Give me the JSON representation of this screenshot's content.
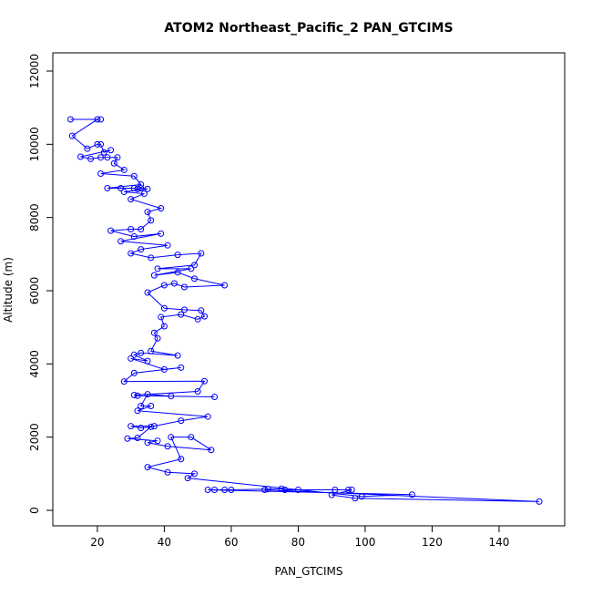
{
  "chart_data": {
    "type": "line",
    "title": "ATOM2 Northeast_Pacific_2 PAN_GTCIMS",
    "x_label": "PAN_GTCIMS",
    "y_label": "Altitude (m)",
    "color": "#0000ff",
    "markers": true,
    "grid": false,
    "xlim": [
      6.7,
      159.6
    ],
    "ylim": [
      -423,
      12498
    ],
    "xticks": [
      20,
      40,
      60,
      80,
      100,
      120,
      140
    ],
    "yticks": [
      0,
      2000,
      4000,
      6000,
      8000,
      10000,
      12000
    ],
    "x": [
      12,
      21,
      20,
      12.5,
      17,
      20,
      21,
      22,
      24,
      15,
      18,
      21,
      23,
      26,
      25,
      28,
      21,
      31,
      33,
      23,
      27,
      31,
      32,
      33,
      35,
      28,
      34,
      30,
      39,
      35,
      36,
      33,
      30,
      24,
      31,
      39,
      27,
      41,
      33,
      30,
      36,
      44,
      51,
      49,
      38,
      48,
      37,
      44,
      49,
      58,
      46,
      43,
      40,
      35,
      40,
      46,
      51,
      52,
      50,
      45,
      39,
      40,
      37,
      38,
      36,
      44,
      33,
      31,
      35,
      30,
      40,
      45,
      31,
      28,
      52,
      50,
      31,
      32,
      55,
      42,
      35,
      33,
      36,
      32,
      53,
      45,
      37,
      30,
      33,
      36,
      32,
      29,
      38,
      35,
      41,
      54,
      48,
      42,
      45,
      35,
      41,
      49,
      47,
      99,
      114,
      53,
      55,
      58,
      60,
      71,
      75,
      76,
      80,
      91,
      95,
      96,
      90,
      97,
      152,
      70
    ],
    "values": [
      10680,
      10680,
      10680,
      10230,
      9880,
      10000,
      10000,
      9780,
      9840,
      9660,
      9600,
      9640,
      9640,
      9640,
      9480,
      9300,
      9200,
      9130,
      8900,
      8800,
      8800,
      8800,
      8780,
      8800,
      8780,
      8700,
      8650,
      8500,
      8250,
      8150,
      7920,
      7680,
      7680,
      7640,
      7480,
      7560,
      7350,
      7240,
      7130,
      7020,
      6900,
      6980,
      7020,
      6700,
      6600,
      6600,
      6420,
      6500,
      6330,
      6150,
      6100,
      6200,
      6150,
      5950,
      5520,
      5480,
      5460,
      5300,
      5220,
      5350,
      5280,
      5030,
      4850,
      4700,
      4350,
      4230,
      4300,
      4250,
      4080,
      4150,
      3850,
      3900,
      3750,
      3520,
      3530,
      3250,
      3150,
      3130,
      3100,
      3120,
      3170,
      2850,
      2850,
      2720,
      2560,
      2450,
      2300,
      2300,
      2250,
      2280,
      1980,
      1960,
      1900,
      1850,
      1750,
      1650,
      2000,
      2000,
      1400,
      1180,
      1040,
      1000,
      880,
      380,
      430,
      560,
      560,
      560,
      560,
      580,
      590,
      560,
      560,
      560,
      560,
      560,
      420,
      330,
      240,
      560
    ]
  }
}
